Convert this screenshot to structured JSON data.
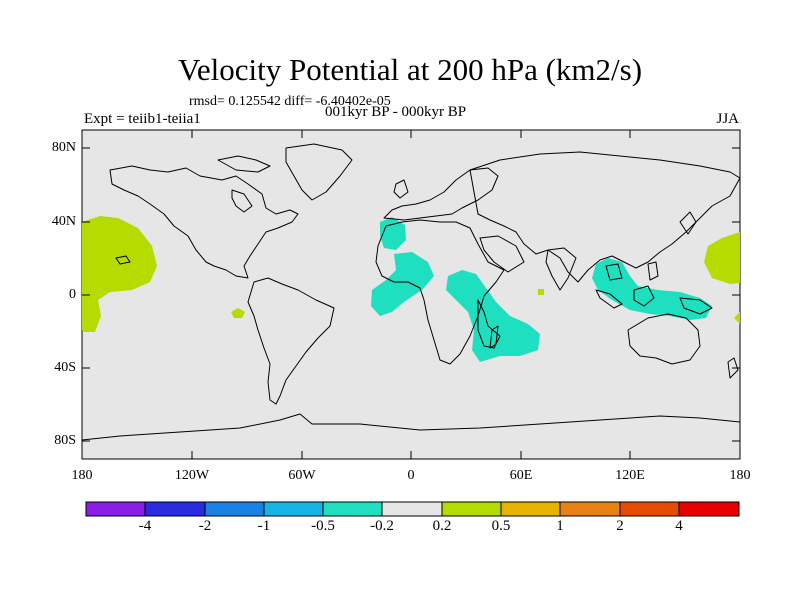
{
  "title": "Velocity Potential at 200 hPa (km2/s)",
  "stats": "rmsd= 0.125542 diff= -6.40402e-05",
  "experiment": "Expt = teiib1-teiia1",
  "period": "001kyr BP - 000kyr BP",
  "season": "JJA",
  "map": {
    "lat_ticks": [
      "80N",
      "40N",
      "0",
      "40S",
      "80S"
    ],
    "lon_ticks": [
      "180",
      "120W",
      "60W",
      "0",
      "60E",
      "120E",
      "180"
    ],
    "lat_range": [
      -90,
      90
    ],
    "lon_range": [
      -180,
      180
    ],
    "background_color": "#e6e6e6",
    "coastline_color": "#000000"
  },
  "colorbar": {
    "labels": [
      "-4",
      "-2",
      "-1",
      "-0.5",
      "-0.2",
      "0.2",
      "0.5",
      "1",
      "2",
      "4"
    ],
    "colors": [
      "#8a1ee6",
      "#2a2ae0",
      "#1a82e6",
      "#14b4e6",
      "#1ee0c0",
      "#e6e6e6",
      "#b4dc00",
      "#e6b400",
      "#e68214",
      "#e64b00",
      "#e60000"
    ]
  },
  "anomaly_colors": {
    "negative": "#1ee0c0",
    "positive": "#b4dc00"
  }
}
